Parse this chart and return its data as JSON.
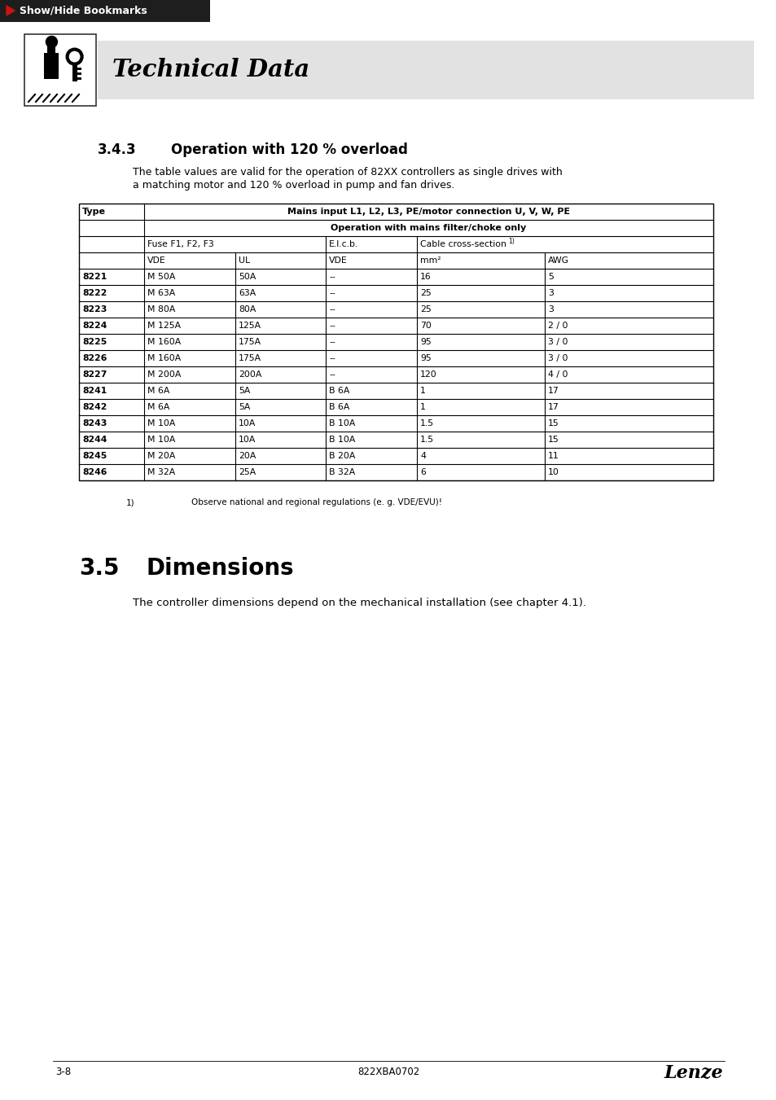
{
  "page_bg": "#ffffff",
  "header_bar_color": "#1e1e1e",
  "header_text": "Show/Hide Bookmarks",
  "tech_data_bg": "#e2e2e2",
  "tech_data_title": "Technical Data",
  "section_title": "3.4.3",
  "section_name": "Operation with 120 % overload",
  "intro_line1": "The table values are valid for the operation of 82XX controllers as single drives with",
  "intro_line2": "a matching motor and 120 % overload in pump and fan drives.",
  "table_header1": "Type",
  "table_header2": "Mains input L1, L2, L3, PE/motor connection U, V, W, PE",
  "table_subheader": "Operation with mains filter/choke only",
  "col_fuse": "Fuse F1, F2, F3",
  "col_elcb": "E.l.c.b.",
  "col_cable": "Cable cross-section",
  "col_vde1": "VDE",
  "col_ul": "UL",
  "col_vde2": "VDE",
  "col_mm2": "mm²",
  "col_awg": "AWG",
  "table_rows": [
    [
      "8221",
      "M 50A",
      "50A",
      "--",
      "16",
      "5"
    ],
    [
      "8222",
      "M 63A",
      "63A",
      "--",
      "25",
      "3"
    ],
    [
      "8223",
      "M 80A",
      "80A",
      "--",
      "25",
      "3"
    ],
    [
      "8224",
      "M 125A",
      "125A",
      "--",
      "70",
      "2 / 0"
    ],
    [
      "8225",
      "M 160A",
      "175A",
      "--",
      "95",
      "3 / 0"
    ],
    [
      "8226",
      "M 160A",
      "175A",
      "--",
      "95",
      "3 / 0"
    ],
    [
      "8227",
      "M 200A",
      "200A",
      "--",
      "120",
      "4 / 0"
    ],
    [
      "8241",
      "M 6A",
      "5A",
      "B 6A",
      "1",
      "17"
    ],
    [
      "8242",
      "M 6A",
      "5A",
      "B 6A",
      "1",
      "17"
    ],
    [
      "8243",
      "M 10A",
      "10A",
      "B 10A",
      "1.5",
      "15"
    ],
    [
      "8244",
      "M 10A",
      "10A",
      "B 10A",
      "1.5",
      "15"
    ],
    [
      "8245",
      "M 20A",
      "20A",
      "B 20A",
      "4",
      "11"
    ],
    [
      "8246",
      "M 32A",
      "25A",
      "B 32A",
      "6",
      "10"
    ]
  ],
  "footnote_text": "Observe national and regional regulations (e. g. VDE/EVU)!",
  "section2_num": "3.5",
  "section2_name": "Dimensions",
  "section2_text": "The controller dimensions depend on the mechanical installation (see chapter 4.1).",
  "footer_left": "3-8",
  "footer_center": "822XBA0702",
  "footer_right": "Lenze"
}
